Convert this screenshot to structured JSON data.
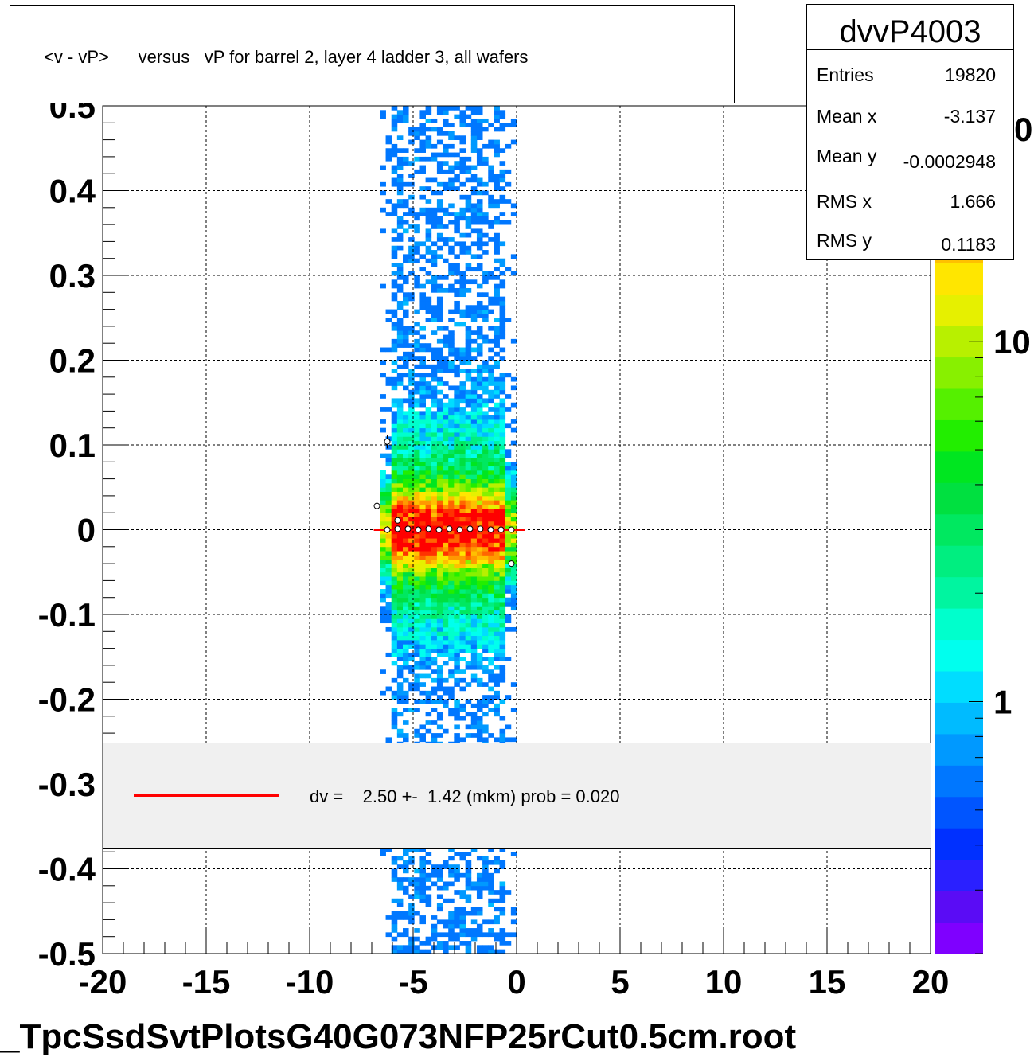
{
  "chart_data": {
    "type": "heatmap",
    "title": "<v - vP>      versus   vP for barrel 2, layer 4 ladder 3, all wafers",
    "xlabel": "",
    "ylabel": "",
    "xlim": [
      -20,
      20
    ],
    "ylim": [
      -0.5,
      0.5
    ],
    "x_ticks": [
      "-20",
      "-15",
      "-10",
      "-5",
      "0",
      "5",
      "10",
      "15",
      "20"
    ],
    "y_ticks": [
      "0.5",
      "0.4",
      "0.3",
      "0.2",
      "0.1",
      "0",
      "-0.1",
      "-0.2",
      "-0.3",
      "-0.4",
      "-0.5"
    ],
    "grid": true,
    "z_scale": "log",
    "z_ticks": [
      "1",
      "10"
    ],
    "z_tick_values": [
      1,
      10
    ],
    "z_clipped_tick_label": "0",
    "z_range": [
      0.2,
      45
    ],
    "palette": [
      "#7f00ff",
      "#5a0cf5",
      "#2a20ff",
      "#0030ff",
      "#0055ff",
      "#0077ff",
      "#0099ff",
      "#00bbff",
      "#00ddff",
      "#00ffee",
      "#00ffcc",
      "#00f5a0",
      "#00ee80",
      "#00e860",
      "#00e040",
      "#00e620",
      "#22ee00",
      "#55f000",
      "#88f000",
      "#b8f000",
      "#e6f000",
      "#ffe600",
      "#ffc000",
      "#ff9900",
      "#ff6600",
      "#ff3300",
      "#ff0000"
    ],
    "occupancy": {
      "x_range": [
        -6.6,
        0
      ],
      "y_range": [
        -0.5,
        0.5
      ],
      "peak_y": 0.0,
      "peak_x_range": [
        -6.0,
        -0.6
      ]
    },
    "profile_points": [
      {
        "x": -6.75,
        "y": 0.028,
        "err": 0.027
      },
      {
        "x": -6.25,
        "y": 0.104,
        "err": 0.008
      },
      {
        "x": -6.25,
        "y": 0.0,
        "err": 0.004
      },
      {
        "x": -5.75,
        "y": 0.001,
        "err": 0.003
      },
      {
        "x": -5.75,
        "y": 0.011,
        "err": 0.003
      },
      {
        "x": -5.25,
        "y": 0.001,
        "err": 0.003
      },
      {
        "x": -4.75,
        "y": 0.0,
        "err": 0.002
      },
      {
        "x": -4.25,
        "y": 0.001,
        "err": 0.002
      },
      {
        "x": -3.75,
        "y": 0.0,
        "err": 0.002
      },
      {
        "x": -3.25,
        "y": 0.001,
        "err": 0.002
      },
      {
        "x": -2.75,
        "y": 0.0,
        "err": 0.002
      },
      {
        "x": -2.25,
        "y": 0.001,
        "err": 0.002
      },
      {
        "x": -1.75,
        "y": 0.001,
        "err": 0.002
      },
      {
        "x": -1.25,
        "y": 0.0,
        "err": 0.002
      },
      {
        "x": -0.75,
        "y": 0.0,
        "err": 0.003
      },
      {
        "x": -0.25,
        "y": 0.0,
        "err": 0.003
      },
      {
        "x": -0.25,
        "y": -0.04,
        "err": 0.003
      }
    ],
    "fit_line": {
      "x_range": [
        -6.9,
        0.4
      ],
      "y": 0.0,
      "color": "#ff0000"
    },
    "stats": {
      "name": "dvvP4003",
      "rows": [
        {
          "label": "Entries",
          "value": "19820"
        },
        {
          "label": "Mean x",
          "value": "-3.137"
        },
        {
          "label": "Mean y",
          "value": "-0.0002948"
        },
        {
          "label": "RMS x",
          "value": "1.666"
        },
        {
          "label": "RMS y",
          "value": "0.1183"
        }
      ]
    },
    "legend": {
      "text": "dv =    2.50 +-  1.42 (mkm) prob = 0.020",
      "color": "#ff0000"
    }
  },
  "footer": "_TpcSsdSvtPlotsG40G073NFP25rCut0.5cm.root"
}
